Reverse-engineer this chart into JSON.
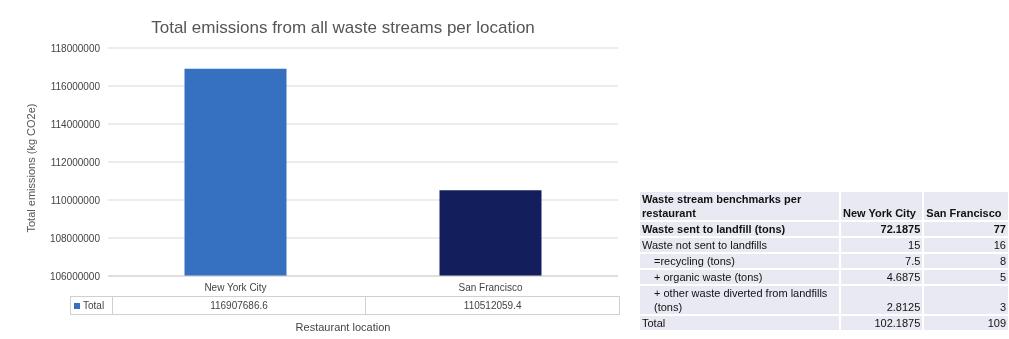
{
  "chart_data": [
    {
      "type": "bar",
      "title": "Total emissions from all waste streams per location",
      "xlabel": "Restaurant location",
      "ylabel": "Total emissions (kg CO2e)",
      "categories": [
        "New York City",
        "San Francisco"
      ],
      "series": [
        {
          "name": "Total",
          "colors": [
            "#3670c0",
            "#121f5c"
          ],
          "values": [
            116907686.6,
            110512059.4
          ]
        }
      ],
      "ylim": [
        106000000,
        118000000
      ],
      "yticks": [
        106000000,
        108000000,
        110000000,
        112000000,
        114000000,
        116000000,
        118000000
      ],
      "grid": "y",
      "data_labels": true
    },
    {
      "type": "other",
      "title": "Waste stream benchmarks per restaurant",
      "annotations": [
        "New York City",
        "San Francisco",
        "Waste sent to landfill (tons)",
        "72.1875",
        "77",
        "Waste not sent to landfills",
        "15",
        "16",
        "=recycling (tons)",
        "7.5",
        "8",
        "+ organic waste (tons)",
        "4.6875",
        "5",
        "+ other waste diverted from landfills (tons)",
        "2.8125",
        "3",
        "Total",
        "102.1875",
        "109"
      ]
    }
  ]
}
